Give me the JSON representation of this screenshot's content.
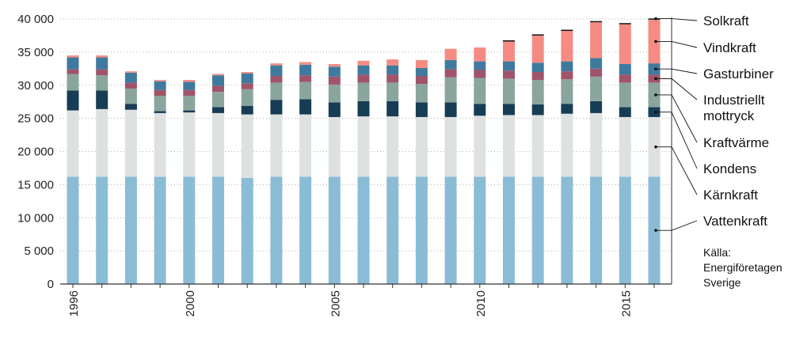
{
  "chart_data": {
    "type": "bar",
    "stacked": true,
    "title": "",
    "xlabel": "",
    "ylabel": "",
    "ylim": [
      0,
      40000
    ],
    "yticks": [
      0,
      5000,
      10000,
      15000,
      20000,
      25000,
      30000,
      35000,
      40000
    ],
    "ytick_labels": [
      "0",
      "5 000",
      "10 000",
      "15 000",
      "20 000",
      "25 000",
      "30 000",
      "35 000",
      "40 000"
    ],
    "xtick_labels": [
      {
        "year": 1996,
        "label": "1996"
      },
      {
        "year": 2000,
        "label": "2000"
      },
      {
        "year": 2005,
        "label": "2005"
      },
      {
        "year": 2010,
        "label": "2010"
      },
      {
        "year": 2015,
        "label": "2015"
      }
    ],
    "categories": [
      1996,
      1997,
      1998,
      1999,
      2000,
      2001,
      2002,
      2003,
      2004,
      2005,
      2006,
      2007,
      2008,
      2009,
      2010,
      2011,
      2012,
      2013,
      2014,
      2015,
      2016
    ],
    "grid": true,
    "series": [
      {
        "name": "Vattenkraft",
        "color": "#8bbcd6",
        "values": [
          16200,
          16200,
          16200,
          16200,
          16200,
          16200,
          16000,
          16200,
          16200,
          16200,
          16200,
          16200,
          16200,
          16200,
          16200,
          16200,
          16200,
          16200,
          16200,
          16200,
          16200
        ]
      },
      {
        "name": "Kärnkraft",
        "color": "#dde2e0",
        "values": [
          10000,
          10200,
          10100,
          9600,
          9700,
          9600,
          9600,
          9400,
          9400,
          9000,
          9100,
          9100,
          9000,
          9000,
          9200,
          9300,
          9300,
          9500,
          9600,
          9000,
          9000
        ]
      },
      {
        "name": "Kondens",
        "color": "#173d55",
        "values": [
          3000,
          2800,
          900,
          300,
          300,
          900,
          1300,
          2200,
          2300,
          2200,
          2300,
          2300,
          2200,
          2200,
          1800,
          1700,
          1600,
          1500,
          1800,
          1500,
          1500
        ]
      },
      {
        "name": "Kraftvärme",
        "color": "#8aa59d",
        "values": [
          2500,
          2300,
          2300,
          2300,
          2200,
          2300,
          2500,
          2600,
          2600,
          2700,
          2800,
          2800,
          2800,
          3800,
          3900,
          3800,
          3700,
          3700,
          3700,
          3700,
          3700
        ]
      },
      {
        "name": "Industriellt mottryck",
        "color": "#a0546a",
        "values": [
          700,
          900,
          900,
          900,
          900,
          900,
          900,
          1000,
          1000,
          1200,
          1200,
          1200,
          1200,
          1200,
          1200,
          1200,
          1200,
          1200,
          1200,
          1200,
          1200
        ]
      },
      {
        "name": "Gasturbiner",
        "color": "#3f7a9e",
        "values": [
          1800,
          1800,
          1500,
          1300,
          1200,
          1600,
          1500,
          1600,
          1600,
          1500,
          1400,
          1400,
          1200,
          1400,
          1300,
          1400,
          1400,
          1500,
          1600,
          1600,
          1700
        ]
      },
      {
        "name": "Vindkraft",
        "color": "#f58c84",
        "values": [
          300,
          300,
          200,
          200,
          300,
          200,
          200,
          300,
          400,
          400,
          700,
          900,
          1200,
          1700,
          2100,
          3000,
          4100,
          4600,
          5400,
          6000,
          6600
        ]
      },
      {
        "name": "Solkraft",
        "color": "#111111",
        "values": [
          0,
          0,
          0,
          0,
          0,
          0,
          0,
          0,
          0,
          0,
          0,
          0,
          0,
          0,
          0,
          50,
          80,
          100,
          120,
          130,
          150
        ]
      }
    ],
    "legend": {
      "placement": "right",
      "items": [
        {
          "label": "Solkraft",
          "series": "Solkraft"
        },
        {
          "label": "Vindkraft",
          "series": "Vindkraft"
        },
        {
          "label": "Gasturbiner",
          "series": "Gasturbiner"
        },
        {
          "label": "Industriellt mottryck",
          "series": "Industriellt mottryck"
        },
        {
          "label": "Kraftvärme",
          "series": "Kraftvärme"
        },
        {
          "label": "Kondens",
          "series": "Kondens"
        },
        {
          "label": "Kärnkraft",
          "series": "Kärnkraft"
        },
        {
          "label": "Vattenkraft",
          "series": "Vattenkraft"
        }
      ]
    },
    "source": "Källa: Energiföretagen Sverige"
  }
}
